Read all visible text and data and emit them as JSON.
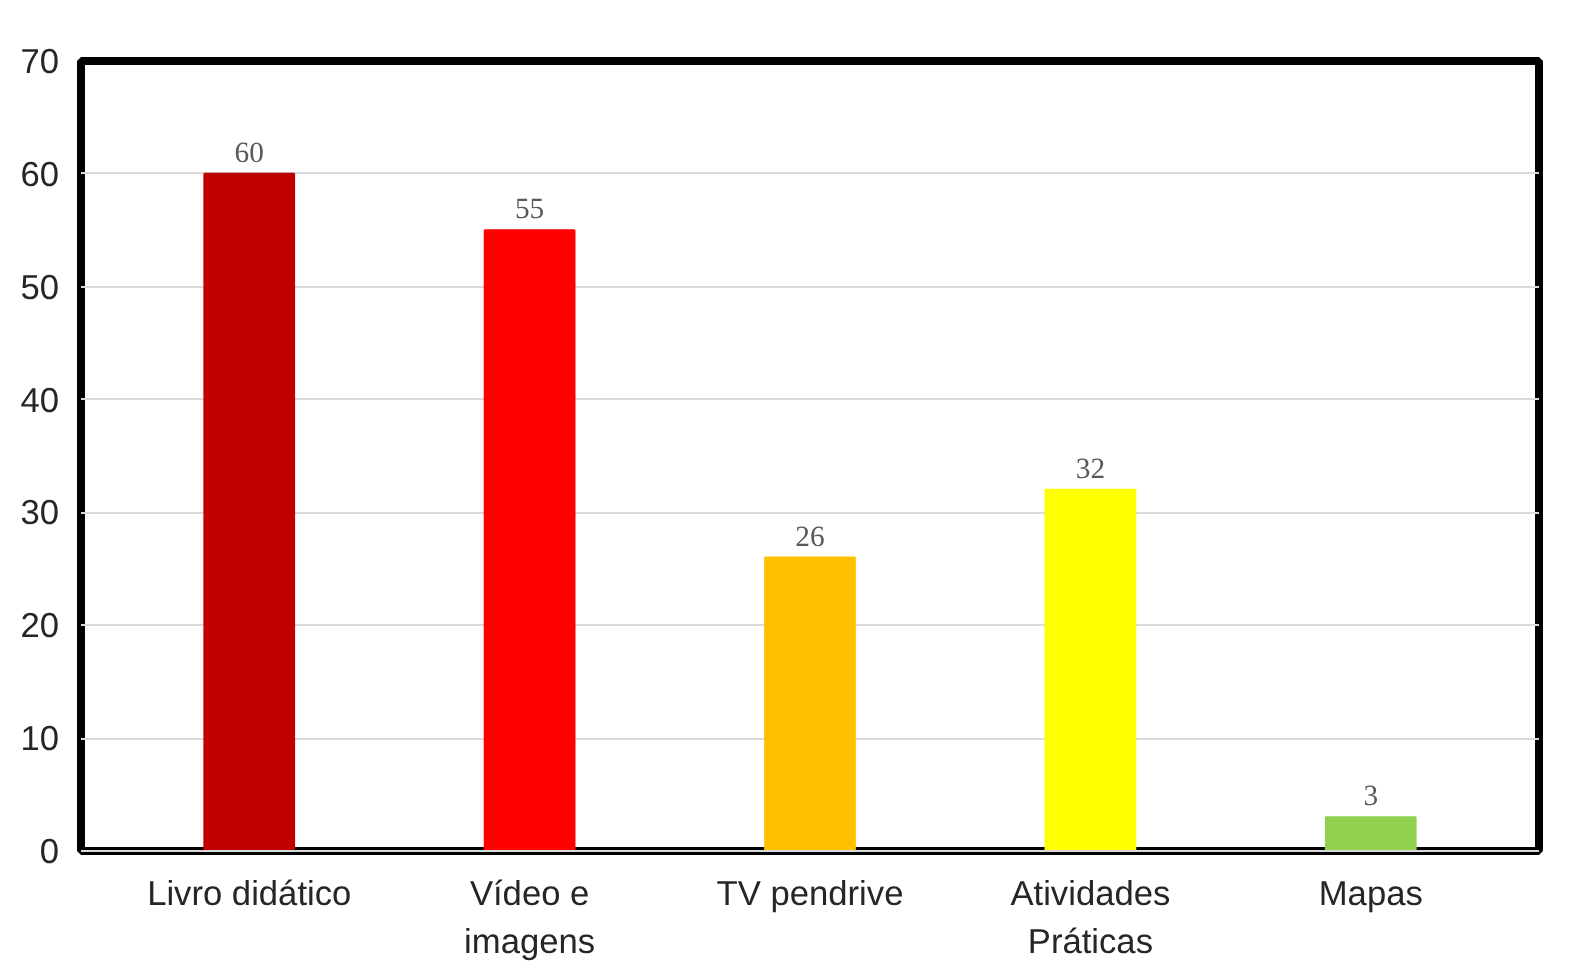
{
  "chart_data": {
    "type": "bar",
    "categories": [
      "Livro didático",
      "Vídeo e\nimagens",
      "TV pendrive",
      "Atividades\nPráticas",
      "Mapas"
    ],
    "values": [
      60,
      55,
      26,
      32,
      3
    ],
    "colors": [
      "#c00000",
      "#ff0000",
      "#ffc000",
      "#ffff00",
      "#92d050"
    ],
    "ylim": [
      0,
      70
    ],
    "yticks": [
      0,
      10,
      20,
      30,
      40,
      50,
      60,
      70
    ],
    "grid": "y",
    "data_labels": true
  }
}
